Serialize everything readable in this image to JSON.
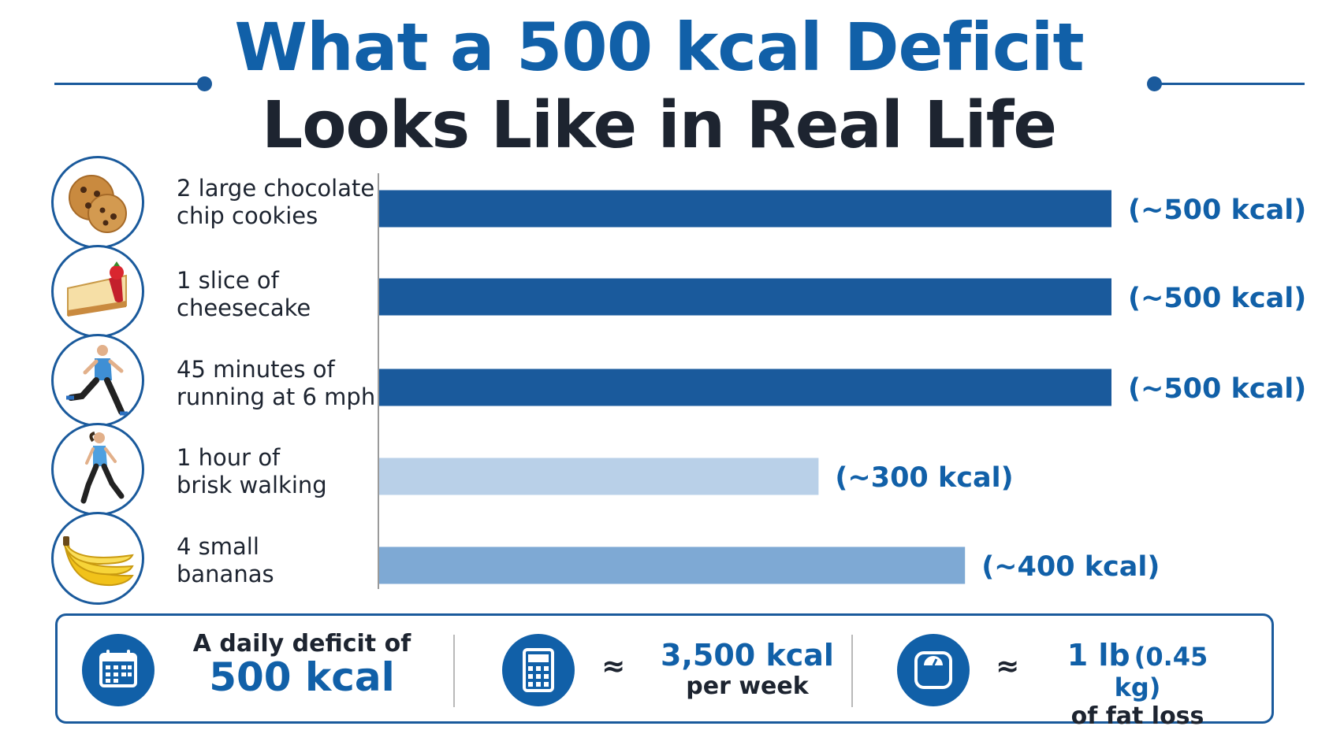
{
  "header": {
    "title_line1": "What a 500 kcal Deficit",
    "title_line2": "Looks Like in Real Life"
  },
  "colors": {
    "primary_blue": "#1160a8",
    "dark_bar": "#1a5a9c",
    "light_bar": "#b9d0e8",
    "medium_bar": "#7ea9d4",
    "heading_dark": "#1d2430"
  },
  "chart_data": {
    "type": "bar",
    "orientation": "horizontal",
    "categories": [
      "2 large chocolate chip cookies",
      "1 slice of cheesecake",
      "45 minutes of running at 6 mph",
      "1 hour of brisk walking",
      "4 small bananas"
    ],
    "category_lines": [
      [
        "2 large chocolate",
        "chip cookies"
      ],
      [
        "1 slice of",
        "cheesecake"
      ],
      [
        "45 minutes of",
        "running at 6 mph"
      ],
      [
        "1 hour of",
        "brisk walking"
      ],
      [
        "4 small",
        "bananas"
      ]
    ],
    "icons": [
      "cookie-icon",
      "cheesecake-icon",
      "runner-icon",
      "walker-icon",
      "banana-icon"
    ],
    "values": [
      500,
      500,
      500,
      300,
      400
    ],
    "value_labels": [
      "(~500 kcal)",
      "(~500 kcal)",
      "(~500 kcal)",
      "(~300 kcal)",
      "(~400 kcal)"
    ],
    "bar_colors": [
      "#1a5a9c",
      "#1a5a9c",
      "#1a5a9c",
      "#b9d0e8",
      "#7ea9d4"
    ],
    "xlim": [
      0,
      500
    ],
    "grid": false
  },
  "summary": {
    "item1": {
      "icon": "calendar-icon",
      "line1": "A daily deficit of",
      "line2": "500 kcal"
    },
    "approx1": "≈",
    "item2": {
      "icon": "calculator-icon",
      "line1": "3,500 kcal",
      "line2": "per week"
    },
    "approx2": "≈",
    "item3": {
      "icon": "scale-icon",
      "line1_main": "1 lb",
      "line1_sub": "(0.45 kg)",
      "line2": "of fat loss"
    }
  }
}
